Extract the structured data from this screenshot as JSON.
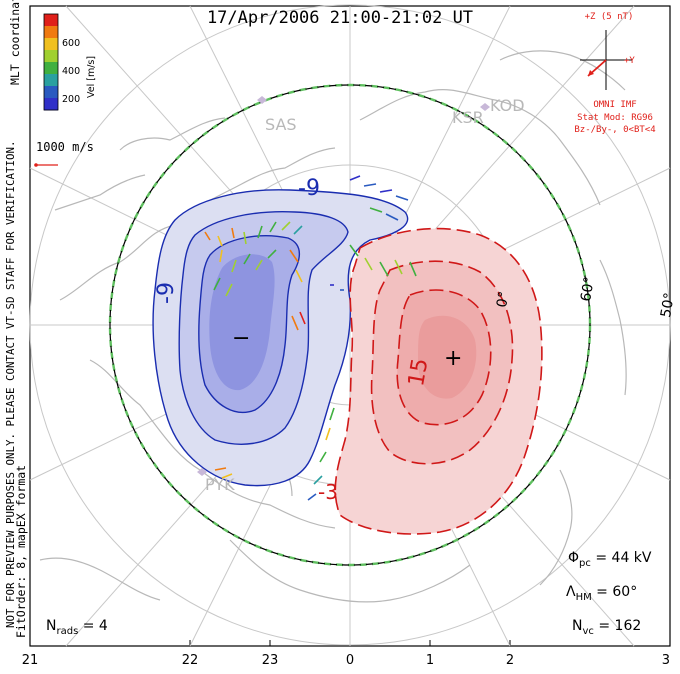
{
  "header": {
    "title": "17/Apr/2006 21:00-21:02 UT"
  },
  "side_notes": {
    "coordinates": "MLT coordinates",
    "preview_warning": "NOT FOR PREVIEW PURPOSES ONLY. PLEASE CONTACT VT-SD STAFF FOR VERIFICATION.",
    "fit_order": "FitOrder: 8, mapEX format"
  },
  "colorbar": {
    "title": "Vel [m/s]",
    "ticks": [
      "600",
      "400",
      "200"
    ],
    "colors": [
      "#e0201a",
      "#f07a10",
      "#f0c020",
      "#a0d030",
      "#40b040",
      "#2aa0a0",
      "#2a5ac0",
      "#3030c8"
    ]
  },
  "reference_vector": {
    "label": "1000 m/s",
    "color": "#e0201a"
  },
  "imf": {
    "axis_z": "+Z (5 nT)",
    "axis_y": "+Y",
    "source": "OMNI IMF",
    "model": "Stat Mod: RG96",
    "condition": "Bz-/By-, 0<BT<4",
    "color": "#e0201a"
  },
  "radars": [
    "SAS",
    "KSR",
    "KOD",
    "PYK"
  ],
  "latitude_labels": [
    "60°",
    "50°",
    "0°"
  ],
  "contours": {
    "negative_label": "-9",
    "positive_label": "15",
    "minus_sign": "−",
    "plus_sign": "+",
    "small_label": "-3",
    "neg_fill": "#b8bce8",
    "pos_fill": "#f2c4c4",
    "neg_line": "#1a2db0",
    "pos_line": "#d01818"
  },
  "stats": {
    "phi_pc": "44 kV",
    "lambda_hm": "60°",
    "n_vc": "162",
    "n_rads": "4"
  },
  "mlt_axis": [
    "21",
    "22",
    "23",
    "0",
    "1",
    "2",
    "3"
  ]
}
